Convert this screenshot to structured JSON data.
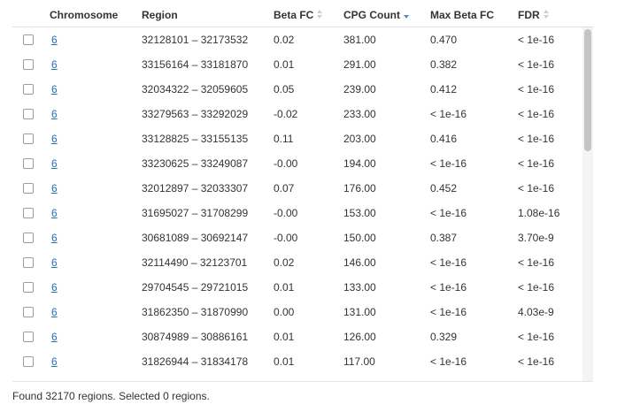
{
  "columns": [
    {
      "label": "Chromosome",
      "sort": "none"
    },
    {
      "label": "Region",
      "sort": "none"
    },
    {
      "label": "Beta FC",
      "sort": "both"
    },
    {
      "label": "CPG Count",
      "sort": "desc"
    },
    {
      "label": "Max Beta FC",
      "sort": "none"
    },
    {
      "label": "FDR",
      "sort": "both"
    }
  ],
  "rows": [
    {
      "chromosome": "6",
      "region": "32128101 – 32173532",
      "beta_fc": "0.02",
      "cpg_count": "381.00",
      "max_beta_fc": "0.470",
      "fdr": "< 1e-16"
    },
    {
      "chromosome": "6",
      "region": "33156164 – 33181870",
      "beta_fc": "0.01",
      "cpg_count": "291.00",
      "max_beta_fc": "0.382",
      "fdr": "< 1e-16"
    },
    {
      "chromosome": "6",
      "region": "32034322 – 32059605",
      "beta_fc": "0.05",
      "cpg_count": "239.00",
      "max_beta_fc": "0.412",
      "fdr": "< 1e-16"
    },
    {
      "chromosome": "6",
      "region": "33279563 – 33292029",
      "beta_fc": "-0.02",
      "cpg_count": "233.00",
      "max_beta_fc": "< 1e-16",
      "fdr": "< 1e-16"
    },
    {
      "chromosome": "6",
      "region": "33128825 – 33155135",
      "beta_fc": "0.11",
      "cpg_count": "203.00",
      "max_beta_fc": "0.416",
      "fdr": "< 1e-16"
    },
    {
      "chromosome": "6",
      "region": "33230625 – 33249087",
      "beta_fc": "-0.00",
      "cpg_count": "194.00",
      "max_beta_fc": "< 1e-16",
      "fdr": "< 1e-16"
    },
    {
      "chromosome": "6",
      "region": "32012897 – 32033307",
      "beta_fc": "0.07",
      "cpg_count": "176.00",
      "max_beta_fc": "0.452",
      "fdr": "< 1e-16"
    },
    {
      "chromosome": "6",
      "region": "31695027 – 31708299",
      "beta_fc": "-0.00",
      "cpg_count": "153.00",
      "max_beta_fc": "< 1e-16",
      "fdr": "1.08e-16"
    },
    {
      "chromosome": "6",
      "region": "30681089 – 30692147",
      "beta_fc": "-0.00",
      "cpg_count": "150.00",
      "max_beta_fc": "0.387",
      "fdr": "3.70e-9"
    },
    {
      "chromosome": "6",
      "region": "32114490 – 32123701",
      "beta_fc": "0.02",
      "cpg_count": "146.00",
      "max_beta_fc": "< 1e-16",
      "fdr": "< 1e-16"
    },
    {
      "chromosome": "6",
      "region": "29704545 – 29721015",
      "beta_fc": "0.01",
      "cpg_count": "133.00",
      "max_beta_fc": "< 1e-16",
      "fdr": "< 1e-16"
    },
    {
      "chromosome": "6",
      "region": "31862350 – 31870990",
      "beta_fc": "0.00",
      "cpg_count": "131.00",
      "max_beta_fc": "< 1e-16",
      "fdr": "4.03e-9"
    },
    {
      "chromosome": "6",
      "region": "30874989 – 30886161",
      "beta_fc": "0.01",
      "cpg_count": "126.00",
      "max_beta_fc": "0.329",
      "fdr": "< 1e-16"
    },
    {
      "chromosome": "6",
      "region": "31826944 – 31834178",
      "beta_fc": "0.01",
      "cpg_count": "117.00",
      "max_beta_fc": "< 1e-16",
      "fdr": "< 1e-16"
    }
  ],
  "footer": {
    "status": "Found 32170 regions. Selected 0 regions."
  },
  "colors": {
    "link": "#2a6ebd",
    "sort_active": "#5b86c4",
    "sort_inactive": "#d0d0d0"
  }
}
